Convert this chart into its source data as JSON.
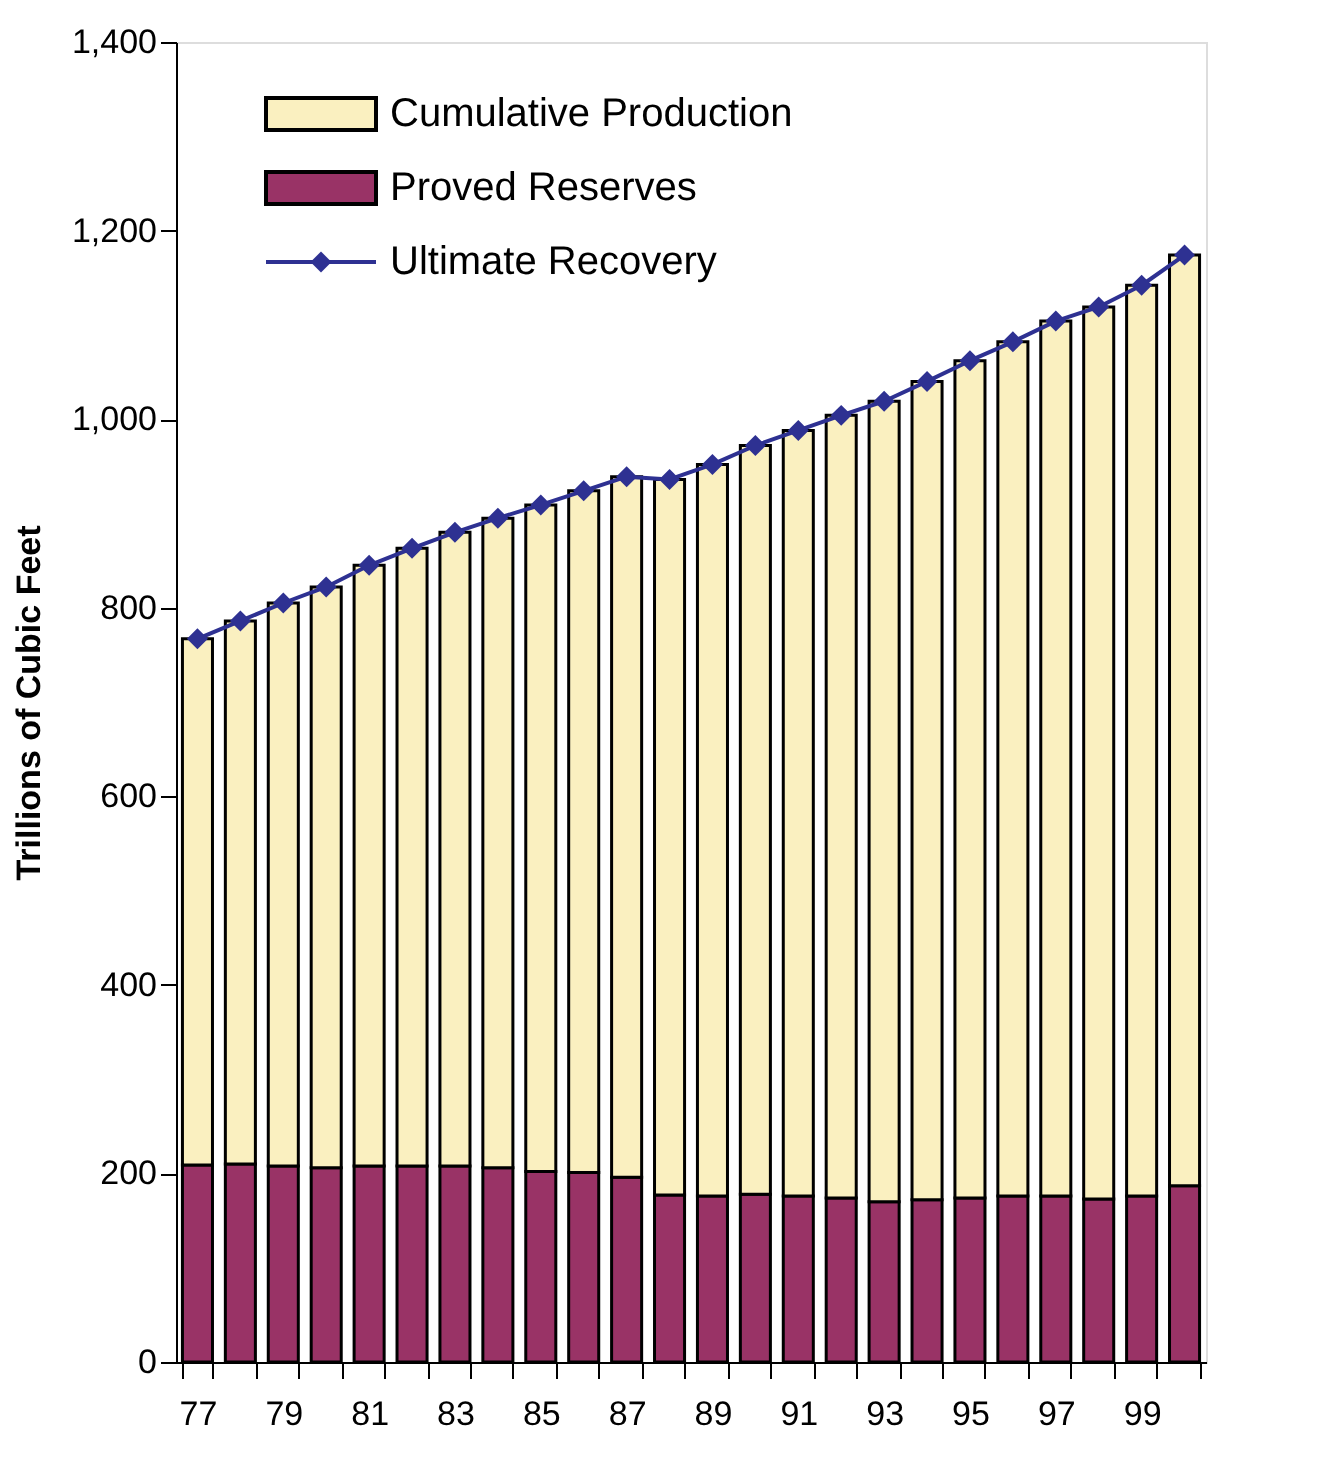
{
  "chart_data": {
    "type": "bar",
    "stacked": true,
    "ylabel": "Trillions of Cubic Feet",
    "categories": [
      "77",
      null,
      "79",
      null,
      "81",
      null,
      "83",
      null,
      "85",
      null,
      "87",
      null,
      "89",
      null,
      "91",
      null,
      "93",
      null,
      "95",
      null,
      "97",
      null,
      "99",
      null
    ],
    "ylim": [
      0,
      1400
    ],
    "yticks": [
      0,
      {
        "value": 200,
        "label": "200"
      },
      {
        "value": 400,
        "label": "400"
      },
      {
        "value": 600,
        "label": "600"
      },
      {
        "value": 800,
        "label": "800"
      },
      {
        "value": 1000,
        "label": "1,000"
      },
      {
        "value": 1200,
        "label": "1,200"
      },
      {
        "value": 1400,
        "label": "1,400"
      }
    ],
    "grid": false,
    "legend": "top left",
    "series": [
      {
        "name": "Proved Reserves",
        "color": "#993366",
        "values": [
          209,
          210,
          208,
          206,
          208,
          208,
          208,
          206,
          202,
          201,
          196,
          177,
          176,
          178,
          176,
          174,
          170,
          172,
          174,
          176,
          176,
          173,
          176,
          187
        ]
      },
      {
        "name": "Cumulative Production",
        "color": "#faf0c0",
        "values": [
          558,
          576,
          597,
          616,
          637,
          655,
          672,
          689,
          707,
          723,
          743,
          759,
          776,
          794,
          812,
          830,
          849,
          868,
          888,
          906,
          928,
          946,
          966,
          987
        ]
      },
      {
        "name": "Ultimate Recovery",
        "type": "line",
        "color": "#2e3192",
        "marker": "diamond",
        "line_style": "solid",
        "values": [
          767,
          786,
          805,
          822,
          845,
          863,
          880,
          895,
          909,
          924,
          939,
          936,
          952,
          972,
          988,
          1004,
          1019,
          1040,
          1062,
          1082,
          1104,
          1119,
          1142,
          1174
        ]
      }
    ]
  }
}
